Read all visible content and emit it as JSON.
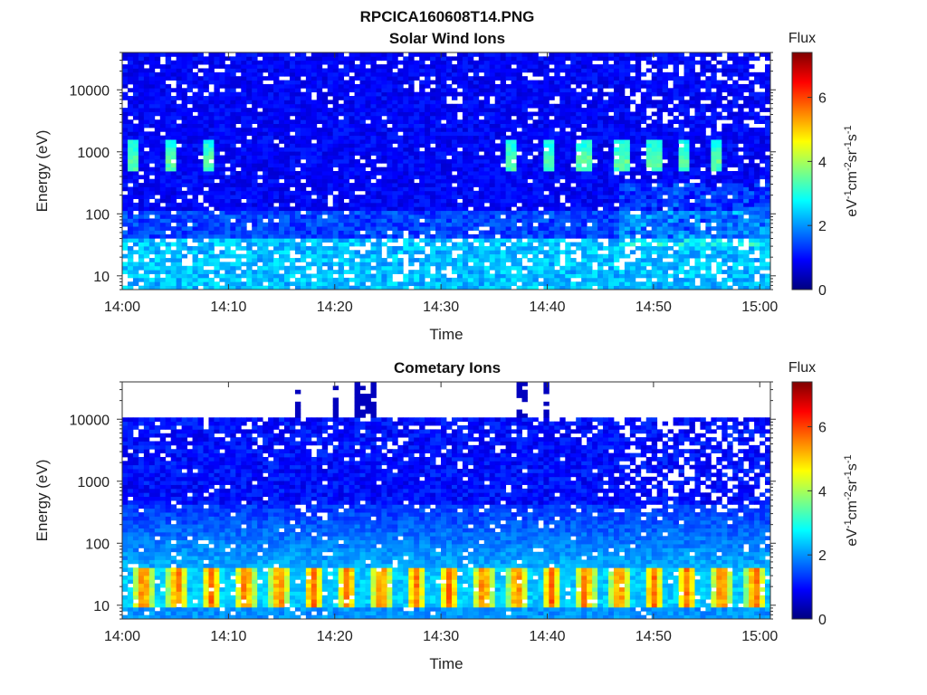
{
  "figure_title": "RPCICA160608T14.PNG",
  "chart_data": [
    {
      "type": "heatmap",
      "title": "Solar Wind Ions",
      "xlabel": "Time",
      "ylabel": "Energy (eV)",
      "x_range": [
        "14:00",
        "15:01"
      ],
      "x_ticks": [
        "14:00",
        "14:10",
        "14:20",
        "14:30",
        "14:40",
        "14:50",
        "15:00"
      ],
      "y_scale": "log",
      "y_range": [
        6,
        40000
      ],
      "y_ticks": [
        "10",
        "100",
        "1000",
        "10000"
      ],
      "colorbar": {
        "title": "Flux",
        "unit_label": "eV-1cm-2sr-1s-1",
        "ticks": [
          "0",
          "2",
          "4",
          "6"
        ],
        "range": [
          0,
          7.4
        ],
        "colormap": "jet"
      },
      "features": {
        "proton_bursts_time_min": [
          1,
          4.5,
          8,
          36.5,
          40,
          43.5,
          47,
          50,
          53,
          56
        ],
        "proton_burst_energy_eV": [
          500,
          1500
        ],
        "proton_burst_peak_flux": 3.5,
        "white_gap_energy_eV": 200,
        "low_energy_band_eV": [
          6,
          40
        ],
        "low_energy_flux": 2.2,
        "background_flux": 0.9
      }
    },
    {
      "type": "heatmap",
      "title": "Cometary Ions",
      "xlabel": "Time",
      "ylabel": "Energy (eV)",
      "x_range": [
        "14:00",
        "15:01"
      ],
      "x_ticks": [
        "14:00",
        "14:10",
        "14:20",
        "14:30",
        "14:40",
        "14:50",
        "15:00"
      ],
      "y_scale": "log",
      "y_range": [
        6,
        40000
      ],
      "y_ticks": [
        "10",
        "100",
        "1000",
        "10000"
      ],
      "colorbar": {
        "title": "Flux",
        "unit_label": "eV-1cm-2sr-1s-1",
        "ticks": [
          "0",
          "2",
          "4",
          "6"
        ],
        "range": [
          0,
          7.4
        ],
        "colormap": "jet"
      },
      "features": {
        "data_ceiling_eV": 11000,
        "high_energy_spikes_time_min": [
          16.5,
          20,
          22.5,
          23.5,
          37.5,
          40
        ],
        "pulse_times_min": [
          2,
          5.2,
          8.4,
          11.6,
          14.8,
          18,
          21.2,
          24.4,
          27.6,
          30.8,
          34,
          37.2,
          40.4,
          43.6,
          46.8,
          50,
          53.2,
          56.4,
          59.6
        ],
        "pulse_energy_eV": [
          10,
          40
        ],
        "pulse_peak_flux": 5.8,
        "background_flux": 1.0
      }
    }
  ]
}
